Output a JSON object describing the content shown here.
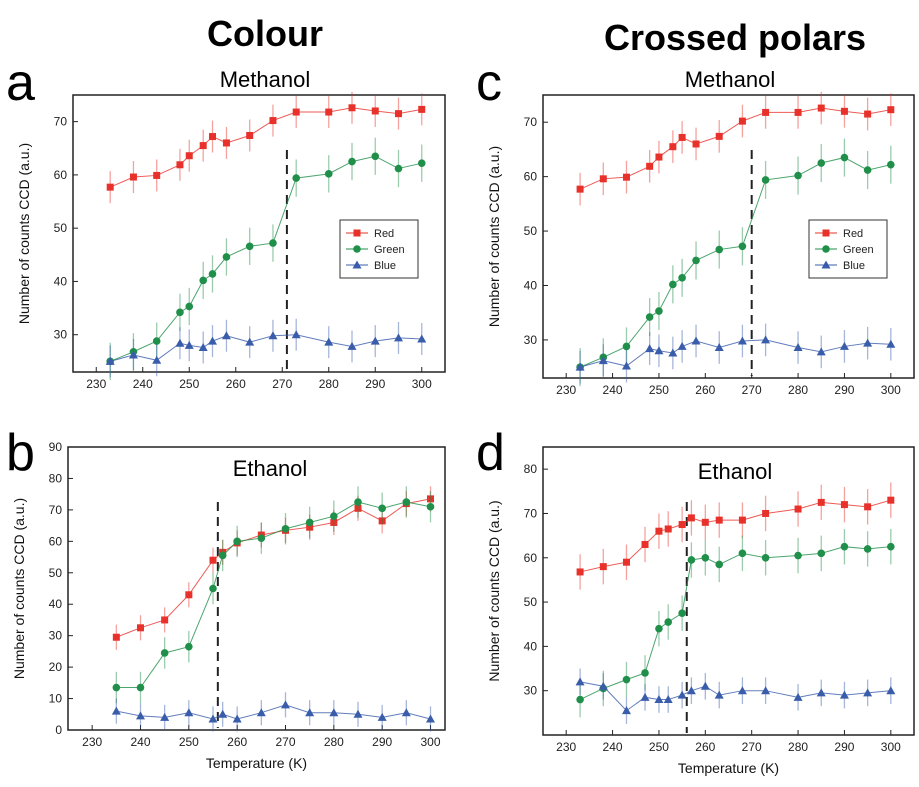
{
  "column_titles": [
    "Colour",
    "Crossed polars"
  ],
  "chart_data": [
    {
      "id": "a",
      "type": "line",
      "panel_letter": "a",
      "title": "Methanol",
      "xlabel": "",
      "ylabel": "Number of counts CCD (a.u.)",
      "xlim": [
        225,
        305
      ],
      "ylim": [
        23,
        75
      ],
      "xticks": [
        230,
        240,
        250,
        260,
        270,
        280,
        290,
        300
      ],
      "yticks": [
        30,
        40,
        50,
        60,
        70
      ],
      "vline": 271,
      "legend": {
        "position": "right-middle",
        "entries": [
          "Red",
          "Green",
          "Blue"
        ]
      },
      "series": [
        {
          "name": "Red",
          "color": "#e8312a",
          "marker": "square",
          "err": 3,
          "x": [
            233,
            238,
            243,
            248,
            250,
            253,
            255,
            258,
            263,
            268,
            273,
            280,
            285,
            290,
            295,
            300
          ],
          "y": [
            57.7,
            59.6,
            59.9,
            61.9,
            63.6,
            65.5,
            67.2,
            66.0,
            67.4,
            70.2,
            71.8,
            71.8,
            72.6,
            72.0,
            71.5,
            72.3
          ]
        },
        {
          "name": "Green",
          "color": "#1f8f4a",
          "marker": "circle",
          "err": 3.5,
          "x": [
            233,
            238,
            243,
            248,
            250,
            253,
            255,
            258,
            263,
            268,
            273,
            280,
            285,
            290,
            295,
            300
          ],
          "y": [
            25.0,
            26.8,
            28.8,
            34.2,
            35.3,
            40.2,
            41.4,
            44.6,
            46.6,
            47.2,
            59.4,
            60.2,
            62.5,
            63.5,
            61.2,
            62.2
          ]
        },
        {
          "name": "Blue",
          "color": "#3a5dab",
          "marker": "triangle",
          "err": 3,
          "x": [
            233,
            238,
            243,
            248,
            250,
            253,
            255,
            258,
            263,
            268,
            273,
            280,
            285,
            290,
            295,
            300
          ],
          "y": [
            25.0,
            26.2,
            25.2,
            28.4,
            28.0,
            27.6,
            28.8,
            29.8,
            28.6,
            29.8,
            30.0,
            28.6,
            27.8,
            28.8,
            29.4,
            29.2
          ]
        }
      ]
    },
    {
      "id": "c",
      "type": "line",
      "panel_letter": "c",
      "title": "Methanol",
      "xlabel": "",
      "ylabel": "Number of counts CCD (a.u.)",
      "xlim": [
        225,
        305
      ],
      "ylim": [
        23,
        75
      ],
      "xticks": [
        230,
        240,
        250,
        260,
        270,
        280,
        290,
        300
      ],
      "yticks": [
        30,
        40,
        50,
        60,
        70
      ],
      "vline": 270,
      "legend": {
        "position": "right-middle",
        "entries": [
          "Red",
          "Green",
          "Blue"
        ]
      },
      "series": [
        {
          "name": "Red",
          "color": "#e8312a",
          "marker": "square",
          "err": 3,
          "x": [
            233,
            238,
            243,
            248,
            250,
            253,
            255,
            258,
            263,
            268,
            273,
            280,
            285,
            290,
            295,
            300
          ],
          "y": [
            57.7,
            59.6,
            59.9,
            61.9,
            63.6,
            65.5,
            67.2,
            66.0,
            67.4,
            70.2,
            71.8,
            71.8,
            72.6,
            72.0,
            71.5,
            72.3
          ]
        },
        {
          "name": "Green",
          "color": "#1f8f4a",
          "marker": "circle",
          "err": 3.5,
          "x": [
            233,
            238,
            243,
            248,
            250,
            253,
            255,
            258,
            263,
            268,
            273,
            280,
            285,
            290,
            295,
            300
          ],
          "y": [
            25.0,
            26.8,
            28.8,
            34.2,
            35.3,
            40.2,
            41.4,
            44.6,
            46.6,
            47.2,
            59.4,
            60.2,
            62.5,
            63.5,
            61.2,
            62.2
          ]
        },
        {
          "name": "Blue",
          "color": "#3a5dab",
          "marker": "triangle",
          "err": 3,
          "x": [
            233,
            238,
            243,
            248,
            250,
            253,
            255,
            258,
            263,
            268,
            273,
            280,
            285,
            290,
            295,
            300
          ],
          "y": [
            25.0,
            26.2,
            25.2,
            28.4,
            28.0,
            27.6,
            28.8,
            29.8,
            28.6,
            29.8,
            30.0,
            28.6,
            27.8,
            28.8,
            29.4,
            29.2
          ]
        }
      ]
    },
    {
      "id": "b",
      "type": "line",
      "panel_letter": "b",
      "title": "Ethanol",
      "xlabel": "Temperature (K)",
      "ylabel": "Number of counts CCD (a.u.)",
      "xlim": [
        225,
        303
      ],
      "ylim": [
        0,
        90
      ],
      "xticks": [
        230,
        240,
        250,
        260,
        270,
        280,
        290,
        300
      ],
      "yticks": [
        0,
        10,
        20,
        30,
        40,
        50,
        60,
        70,
        80,
        90
      ],
      "vline": 256,
      "legend": null,
      "series": [
        {
          "name": "Red",
          "color": "#e8312a",
          "marker": "square",
          "err": 4,
          "x": [
            235,
            240,
            245,
            250,
            255,
            257,
            260,
            265,
            270,
            275,
            280,
            285,
            290,
            295,
            300
          ],
          "y": [
            29.5,
            32.5,
            35.0,
            43.0,
            54.0,
            56.5,
            59.5,
            62.0,
            63.5,
            64.5,
            66.0,
            70.5,
            66.5,
            72.0,
            73.5
          ]
        },
        {
          "name": "Green",
          "color": "#1f8f4a",
          "marker": "circle",
          "err": 5,
          "x": [
            235,
            240,
            245,
            250,
            255,
            257,
            260,
            265,
            270,
            275,
            280,
            285,
            290,
            295,
            300
          ],
          "y": [
            13.5,
            13.5,
            24.5,
            26.5,
            45.0,
            55.5,
            60.0,
            61.0,
            64.0,
            66.0,
            68.0,
            72.5,
            70.5,
            72.5,
            71.0
          ]
        },
        {
          "name": "Blue",
          "color": "#3a5dab",
          "marker": "triangle",
          "err": 4,
          "x": [
            235,
            240,
            245,
            250,
            255,
            257,
            260,
            265,
            270,
            275,
            280,
            285,
            290,
            295,
            300
          ],
          "y": [
            6.0,
            4.5,
            4.0,
            5.5,
            3.5,
            5.0,
            3.5,
            5.5,
            8.0,
            5.5,
            5.5,
            5.0,
            4.0,
            5.5,
            3.5
          ]
        }
      ]
    },
    {
      "id": "d",
      "type": "line",
      "panel_letter": "d",
      "title": "Ethanol",
      "xlabel": "Temperature (K)",
      "ylabel": "Number of counts CCD (a.u.)",
      "xlim": [
        225,
        305
      ],
      "ylim": [
        20,
        85
      ],
      "xticks": [
        230,
        240,
        250,
        260,
        270,
        280,
        290,
        300
      ],
      "yticks": [
        30,
        40,
        50,
        60,
        70,
        80
      ],
      "vline": 256,
      "legend": null,
      "series": [
        {
          "name": "Red",
          "color": "#e8312a",
          "marker": "square",
          "err": 4,
          "x": [
            233,
            238,
            243,
            247,
            250,
            252,
            255,
            257,
            260,
            263,
            268,
            273,
            280,
            285,
            290,
            295,
            300
          ],
          "y": [
            56.8,
            58.0,
            59.0,
            63.0,
            66.0,
            66.5,
            67.5,
            69.0,
            68.0,
            68.5,
            68.5,
            70.0,
            71.0,
            72.5,
            72.0,
            71.5,
            73.0
          ]
        },
        {
          "name": "Green",
          "color": "#1f8f4a",
          "marker": "circle",
          "err": 4,
          "x": [
            233,
            238,
            243,
            247,
            250,
            252,
            255,
            257,
            260,
            263,
            268,
            273,
            280,
            285,
            290,
            295,
            300
          ],
          "y": [
            28.0,
            30.5,
            32.5,
            34.0,
            44.0,
            45.5,
            47.5,
            59.5,
            60.0,
            58.5,
            61.0,
            60.0,
            60.5,
            61.0,
            62.5,
            62.0,
            62.5
          ]
        },
        {
          "name": "Blue",
          "color": "#3a5dab",
          "marker": "triangle",
          "err": 3,
          "x": [
            233,
            238,
            243,
            247,
            250,
            252,
            255,
            257,
            260,
            263,
            268,
            273,
            280,
            285,
            290,
            295,
            300
          ],
          "y": [
            32.0,
            31.0,
            25.5,
            28.5,
            28.0,
            28.0,
            29.0,
            30.0,
            31.0,
            29.0,
            30.0,
            30.0,
            28.5,
            29.5,
            29.0,
            29.5,
            30.0
          ]
        }
      ]
    }
  ]
}
